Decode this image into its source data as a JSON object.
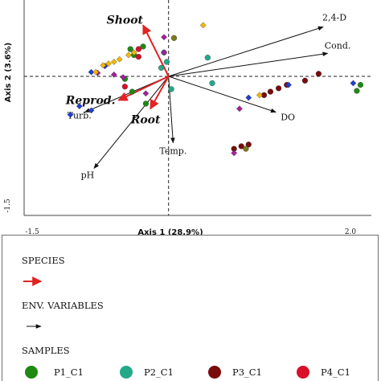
{
  "chart_data": {
    "type": "scatter",
    "subtype": "ordination-triplot",
    "xlabel": "Axis 1 (28.9%)",
    "ylabel": "Axis 2 (3.6%)",
    "xlim": [
      -1.5,
      2.0
    ],
    "ylim": [
      -1.5,
      1.0
    ],
    "x_tick_labels": [
      "-1.5",
      "2.0"
    ],
    "y_tick_labels": [
      "-1.5"
    ],
    "zero_lines": "dashed",
    "species_vectors": [
      {
        "label": "Shoot",
        "x": -0.28,
        "y": 0.6
      },
      {
        "label": "Reprod.",
        "x": -0.55,
        "y": -0.28
      },
      {
        "label": "Root",
        "x": -0.2,
        "y": -0.38
      }
    ],
    "env_vectors": [
      {
        "label": "2,4-D",
        "x": 1.7,
        "y": 0.58
      },
      {
        "label": "Cond.",
        "x": 1.75,
        "y": 0.27
      },
      {
        "label": "DO",
        "x": 1.18,
        "y": -0.42
      },
      {
        "label": "Temp.",
        "x": 0.05,
        "y": -0.78
      },
      {
        "label": "pH",
        "x": -0.82,
        "y": -1.08
      },
      {
        "label": "Turb.",
        "x": -0.92,
        "y": -0.42
      }
    ],
    "series": [
      {
        "name": "P1_C1",
        "color": "#1e8a12",
        "points": [
          [
            -0.42,
            0.32
          ],
          [
            -0.28,
            0.35
          ],
          [
            -0.38,
            0.25
          ],
          [
            -0.48,
            -0.03
          ],
          [
            -0.4,
            -0.18
          ],
          [
            -0.25,
            -0.32
          ],
          [
            2.07,
            -0.17
          ],
          [
            2.11,
            -0.1
          ]
        ]
      },
      {
        "name": "P2_C1",
        "color": "#23a98a",
        "points": [
          [
            -0.05,
            0.28
          ],
          [
            -0.02,
            0.17
          ],
          [
            -0.08,
            0.1
          ],
          [
            0.03,
            -0.15
          ],
          [
            0.43,
            0.22
          ],
          [
            0.48,
            -0.08
          ]
        ]
      },
      {
        "name": "P3_C1",
        "color": "#7a0b0b",
        "points": [
          [
            0.72,
            -0.85
          ],
          [
            0.8,
            -0.82
          ],
          [
            0.88,
            -0.8
          ],
          [
            1.05,
            -0.22
          ],
          [
            1.12,
            -0.18
          ],
          [
            1.21,
            -0.14
          ],
          [
            1.3,
            -0.1
          ],
          [
            1.5,
            -0.05
          ],
          [
            1.65,
            0.03
          ]
        ]
      },
      {
        "name": "P4_C1",
        "color": "#d90f2a",
        "points": [
          [
            -0.33,
            0.32
          ],
          [
            -0.33,
            0.23
          ],
          [
            -0.48,
            -0.12
          ]
        ]
      },
      {
        "name": "magenta",
        "color": "#a61e9c",
        "points": [
          [
            -0.78,
            0.04
          ],
          [
            -0.6,
            0.02
          ],
          [
            -0.5,
            -0.01
          ],
          [
            -0.25,
            -0.2
          ],
          [
            -0.05,
            0.46
          ],
          [
            -0.05,
            0.28
          ],
          [
            0.72,
            -0.9
          ],
          [
            0.78,
            -0.38
          ]
        ]
      },
      {
        "name": "blue",
        "color": "#1f3fd2",
        "points": [
          [
            -0.85,
            0.05
          ],
          [
            -0.7,
            0.12
          ],
          [
            -0.98,
            -0.35
          ],
          [
            -1.08,
            -0.45
          ],
          [
            -0.85,
            -0.4
          ],
          [
            0.88,
            -0.25
          ],
          [
            1.32,
            -0.1
          ],
          [
            2.03,
            -0.08
          ]
        ]
      },
      {
        "name": "yellow",
        "color": "#f2b800",
        "points": [
          [
            -0.8,
            0.05
          ],
          [
            -0.72,
            0.13
          ],
          [
            -0.66,
            0.15
          ],
          [
            -0.6,
            0.17
          ],
          [
            -0.54,
            0.2
          ],
          [
            -0.44,
            0.25
          ],
          [
            -0.38,
            0.28
          ],
          [
            0.38,
            0.6
          ],
          [
            1.0,
            -0.22
          ]
        ]
      },
      {
        "name": "olive",
        "color": "#7d7a1b",
        "points": [
          [
            0.06,
            0.45
          ],
          [
            0.85,
            -0.85
          ]
        ]
      }
    ]
  },
  "legend": {
    "species_title": "SPECIES",
    "env_title": "ENV. VARIABLES",
    "samples_title": "SAMPLES",
    "species_color": "#e32222",
    "samples": [
      {
        "label": "P1_C1",
        "color": "#1e8a12"
      },
      {
        "label": "P2_C1",
        "color": "#23a98a"
      },
      {
        "label": "P3_C1",
        "color": "#7a0b0b"
      },
      {
        "label": "P4_C1",
        "color": "#d90f2a"
      }
    ]
  }
}
